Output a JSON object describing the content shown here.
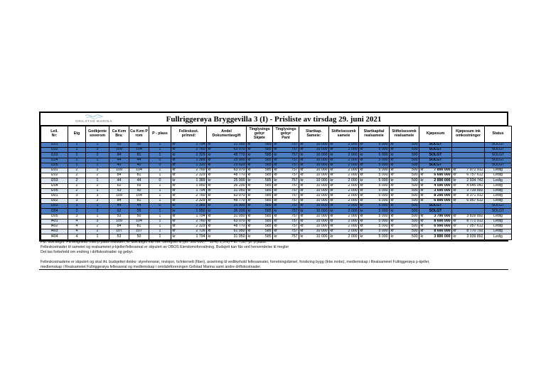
{
  "logo": {
    "text": "GRILSTAD MARINA"
  },
  "title": "Fullriggerøya Bryggevilla 3 (I) - Prisliste av tirsdag 29. juni 2021",
  "table": {
    "currency_prefix": "kr",
    "headers": [
      "Leil.\nNr:",
      "Etg",
      "Godkjente\nsoverom",
      "Ca Kvm\nBra:",
      "Ca Kvm P\nrom",
      "P - plass",
      "Felleskost.\npr/mnd:",
      "Andel\nDokumentavgift",
      "Tinglysings\ngebyr\nSkjøte",
      "Tinglysings\ngebyr\nPant",
      "Startkap.\nSameie:",
      "Stiftelsesomk\nsameie",
      "Startkapital\nrealsameie",
      "Stiftelsesomk\nrealsameie",
      "Kjøpesum",
      "Kjøpesum ink\nomkostninger",
      "Status"
    ],
    "rows": [
      {
        "nr": "I101",
        "etg": "1",
        "sov": "1",
        "bra": "53",
        "prom": "50",
        "p": "1",
        "felles": "1 794",
        "dok": "31 050",
        "skjote": "585",
        "pant": "757",
        "startkap": "10 000",
        "stift_sameie": "2 000",
        "startkap_real": "5 000",
        "stift_real": "500",
        "kjopesum": "SOLGT",
        "ink": "",
        "status": "SOLGT"
      },
      {
        "nr": "I102",
        "etg": "1",
        "sov": "3",
        "bra": "109",
        "prom": "104",
        "p": "1",
        "felles": "2 760",
        "dok": "63 070",
        "skjote": "585",
        "pant": "757",
        "startkap": "10 000",
        "stift_sameie": "2 000",
        "startkap_real": "5 000",
        "stift_real": "500",
        "kjopesum": "SOLGT",
        "ink": "",
        "status": "SOLGT"
      },
      {
        "nr": "I103",
        "etg": "1",
        "sov": "2",
        "bra": "84",
        "prom": "81",
        "p": "1",
        "felles": "2 329",
        "dok": "48 770",
        "skjote": "585",
        "pant": "757",
        "startkap": "10 000",
        "stift_sameie": "2 000",
        "startkap_real": "5 000",
        "stift_real": "500",
        "kjopesum": "SOLGT",
        "ink": "",
        "status": "SOLGT"
      },
      {
        "nr": "I104",
        "etg": "1",
        "sov": "1",
        "bra": "44",
        "prom": "44",
        "p": "0",
        "felles": "1 389",
        "dok": "25 900",
        "skjote": "585",
        "pant": "757",
        "startkap": "10 000",
        "stift_sameie": "2 000",
        "startkap_real": "5 000",
        "stift_real": "500",
        "kjopesum": "SOLGT",
        "ink": "",
        "status": "SOLGT"
      },
      {
        "nr": "I105",
        "etg": "1",
        "sov": "1",
        "bra": "40",
        "prom": "40",
        "p": "0",
        "felles": "1 320",
        "dok": "23 620",
        "skjote": "585",
        "pant": "757",
        "startkap": "10 000",
        "stift_sameie": "2 000",
        "startkap_real": "5 000",
        "stift_real": "500",
        "kjopesum": "SOLGT",
        "ink": "",
        "status": "SOLGT"
      },
      {
        "nr": "I201",
        "etg": "2",
        "sov": "3",
        "bra": "109",
        "prom": "104",
        "p": "1",
        "felles": "2 760",
        "dok": "63 070",
        "skjote": "585",
        "pant": "757",
        "startkap": "10 000",
        "stift_sameie": "2 000",
        "startkap_real": "5 000",
        "stift_real": "500",
        "kjopesum": "7 890 000",
        "ink": "7 971 912",
        "status": "Ledig"
      },
      {
        "nr": "I202",
        "etg": "2",
        "sov": "2",
        "bra": "84",
        "prom": "81",
        "p": "1",
        "felles": "2 329",
        "dok": "48 770",
        "skjote": "585",
        "pant": "757",
        "startkap": "10 000",
        "stift_sameie": "2 000",
        "startkap_real": "5 000",
        "stift_real": "500",
        "kjopesum": "6 690 000",
        "ink": "6 757 612",
        "status": "Ledig"
      },
      {
        "nr": "I203",
        "etg": "2",
        "sov": "1",
        "bra": "44",
        "prom": "44",
        "p": "0",
        "felles": "1 389",
        "dok": "25 900",
        "skjote": "585",
        "pant": "757",
        "startkap": "10 000",
        "stift_sameie": "2 000",
        "startkap_real": "5 000",
        "stift_real": "500",
        "kjopesum": "2 890 000",
        "ink": "2 934 742",
        "status": "Ledig"
      },
      {
        "nr": "I204",
        "etg": "2",
        "sov": "2",
        "bra": "62",
        "prom": "59",
        "p": "1",
        "felles": "1 950",
        "dok": "36 200",
        "skjote": "585",
        "pant": "757",
        "startkap": "10 000",
        "stift_sameie": "2 000",
        "startkap_real": "5 000",
        "stift_real": "500",
        "kjopesum": "4 590 000",
        "ink": "4 645 042",
        "status": "Ledig"
      },
      {
        "nr": "I205",
        "etg": "2",
        "sov": "1",
        "bra": "53",
        "prom": "50",
        "p": "1",
        "felles": "1 794",
        "dok": "31 050",
        "skjote": "585",
        "pant": "757",
        "startkap": "10 000",
        "stift_sameie": "2 000",
        "startkap_real": "5 000",
        "stift_real": "500",
        "kjopesum": "3 690 000",
        "ink": "3 739 892",
        "status": "Ledig"
      },
      {
        "nr": "I301",
        "etg": "3",
        "sov": "3",
        "bra": "109",
        "prom": "104",
        "p": "1",
        "felles": "2 760",
        "dok": "63 070",
        "skjote": "585",
        "pant": "757",
        "startkap": "10 000",
        "stift_sameie": "2 000",
        "startkap_real": "5 000",
        "stift_real": "500",
        "kjopesum": "8 290 000",
        "ink": "8 371 912",
        "status": "Ledig"
      },
      {
        "nr": "I302",
        "etg": "3",
        "sov": "2",
        "bra": "84",
        "prom": "81",
        "p": "1",
        "felles": "2 329",
        "dok": "48 770",
        "skjote": "585",
        "pant": "757",
        "startkap": "10 000",
        "stift_sameie": "2 000",
        "startkap_real": "5 000",
        "stift_real": "500",
        "kjopesum": "6 890 000",
        "ink": "6 957 612",
        "status": "Ledig"
      },
      {
        "nr": "I303",
        "etg": "3",
        "sov": "1",
        "bra": "44",
        "prom": "44",
        "p": "0",
        "felles": "1 389",
        "dok": "25 900",
        "skjote": "585",
        "pant": "757",
        "startkap": "10 000",
        "stift_sameie": "2 000",
        "startkap_real": "5 000",
        "stift_real": "500",
        "kjopesum": "SOLGT",
        "ink": "",
        "status": "SOLGT"
      },
      {
        "nr": "I304",
        "etg": "3",
        "sov": "2",
        "bra": "62",
        "prom": "59",
        "p": "1",
        "felles": "1 950",
        "dok": "36 200",
        "skjote": "585",
        "pant": "757",
        "startkap": "10 000",
        "stift_sameie": "2 000",
        "startkap_real": "5 000",
        "stift_real": "500",
        "kjopesum": "SOLGT",
        "ink": "",
        "status": "SOLGT"
      },
      {
        "nr": "I305",
        "etg": "3",
        "sov": "1",
        "bra": "53",
        "prom": "50",
        "p": "1",
        "felles": "1 794",
        "dok": "31 050",
        "skjote": "585",
        "pant": "757",
        "startkap": "10 000",
        "stift_sameie": "2 000",
        "startkap_real": "5 000",
        "stift_real": "500",
        "kjopesum": "3 790 000",
        "ink": "3 839 892",
        "status": "Ledig"
      },
      {
        "nr": "I401",
        "etg": "4",
        "sov": "3",
        "bra": "109",
        "prom": "104",
        "p": "1",
        "felles": "2 760",
        "dok": "63 070",
        "skjote": "585",
        "pant": "757",
        "startkap": "10 000",
        "stift_sameie": "2 000",
        "startkap_real": "5 000",
        "stift_real": "500",
        "kjopesum": "8 690 000",
        "ink": "8 771 912",
        "status": "Ledig"
      },
      {
        "nr": "I402",
        "etg": "4",
        "sov": "2",
        "bra": "84",
        "prom": "81",
        "p": "1",
        "felles": "2 329",
        "dok": "48 770",
        "skjote": "585",
        "pant": "757",
        "startkap": "10 000",
        "stift_sameie": "2 000",
        "startkap_real": "5 000",
        "stift_real": "500",
        "kjopesum": "6 990 000",
        "ink": "7 057 612",
        "status": "Ledig"
      },
      {
        "nr": "I403",
        "etg": "4",
        "sov": "2",
        "bra": "107",
        "prom": "107",
        "p": "1",
        "felles": "2 726",
        "dok": "61 950",
        "skjote": "585",
        "pant": "757",
        "startkap": "10 000",
        "stift_sameie": "2 000",
        "startkap_real": "5 000",
        "stift_real": "500",
        "kjopesum": "8 690 000",
        "ink": "8 770 792",
        "status": "Ledig"
      },
      {
        "nr": "I404",
        "etg": "4",
        "sov": "1",
        "bra": "53",
        "prom": "50",
        "p": "1",
        "felles": "1 794",
        "dok": "31 050",
        "skjote": "585",
        "pant": "757",
        "startkap": "10 000",
        "stift_sameie": "2 000",
        "startkap_real": "5 000",
        "stift_real": "500",
        "kjopesum": "3 890 000",
        "ink": "3 939 892",
        "status": "Ledig"
      }
    ]
  },
  "footnotes": [
    "Pkt. dok.avgift: På leiligheter med p plass inkludert, er dok.avgift inkl her. Beregnet til ((kr. 300 000,- * 10%)*2,5%) = kr. 750,- pr. p plass.",
    "Felleskostnader til sameiet og realsameiet p-kjeller/fellesareal er stipulert av OBOS Eiendomsforvaltning. Budsjett kan fås ved henvendelse til megler",
    "Det tas forbehold om endring i driftskostnader og gebyr.",
    "",
    "Felleskostnadene er stipulert og skal iht. budsjettet dekke: styrehonorar, revisjon, tv/internett (fiber), avsetning til vedlikehold fellesarealer, forretningsførsel, forsikring bygg (ikke innbo), medlemskap i Realsameiet Fullriggerøya p-kjeller,",
    "medlemskap i Realsameiet Fullriggerøya fellesareal og medlemskap i områdeforeningen Grilstad Marina samt andre driftskostnader."
  ],
  "colors": {
    "sold_row": "#4d7ec1",
    "stripe_row": "#dce6f1",
    "border": "#000000",
    "logo_wave": "#9fc6d6"
  },
  "status_values": {
    "sold": "SOLGT",
    "available": "Ledig"
  }
}
